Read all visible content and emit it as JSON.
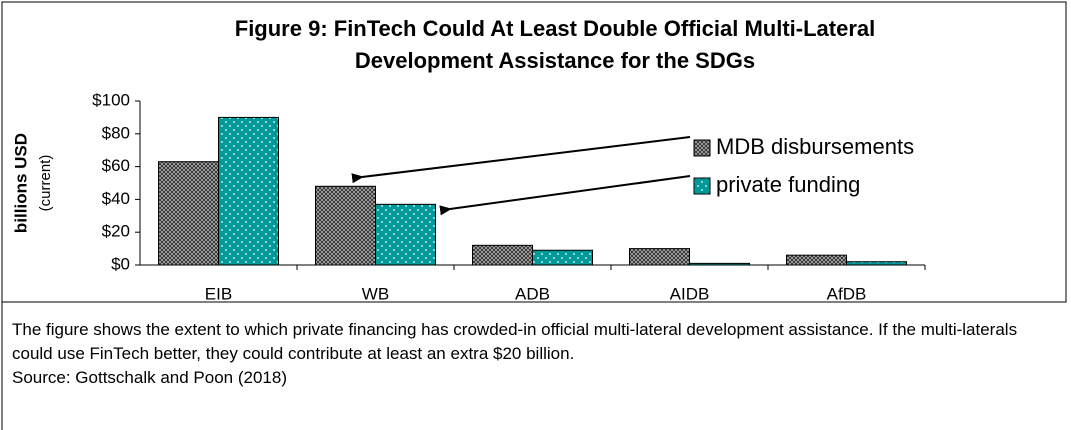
{
  "chart_data": {
    "type": "bar",
    "title": "Figure 9: FinTech Could At Least Double Official Multi-Lateral Development Assistance for the SDGs",
    "title_lines": [
      "Figure 9: FinTech Could At Least Double Official Multi-Lateral",
      "Development Assistance for the SDGs"
    ],
    "y_label": "billions USD",
    "y_label_sub": "(current)",
    "categories": [
      "EIB",
      "WB",
      "ADB",
      "AIDB",
      "AfDB"
    ],
    "series": [
      {
        "name": "MDB disbursements",
        "color": "#7f7f7f",
        "values": [
          63,
          48,
          12,
          10,
          6
        ]
      },
      {
        "name": "private funding",
        "color": "#009999",
        "values": [
          90,
          37,
          9,
          1,
          2
        ]
      }
    ],
    "ylim": [
      0,
      100
    ],
    "yticks": [
      {
        "value": 0,
        "label": "$0"
      },
      {
        "value": 20,
        "label": "$20"
      },
      {
        "value": 40,
        "label": "$40"
      },
      {
        "value": 60,
        "label": "$60"
      },
      {
        "value": 80,
        "label": "$80"
      },
      {
        "value": 100,
        "label": "$100"
      }
    ],
    "legend": "right",
    "note": "The figure shows the extent to which private financing has crowded-in official multi-lateral development assistance. If the multi-laterals could use FinTech better, they could contribute at least an extra $20 billion.",
    "source": "Source: Gottschalk and Poon (2018)"
  }
}
